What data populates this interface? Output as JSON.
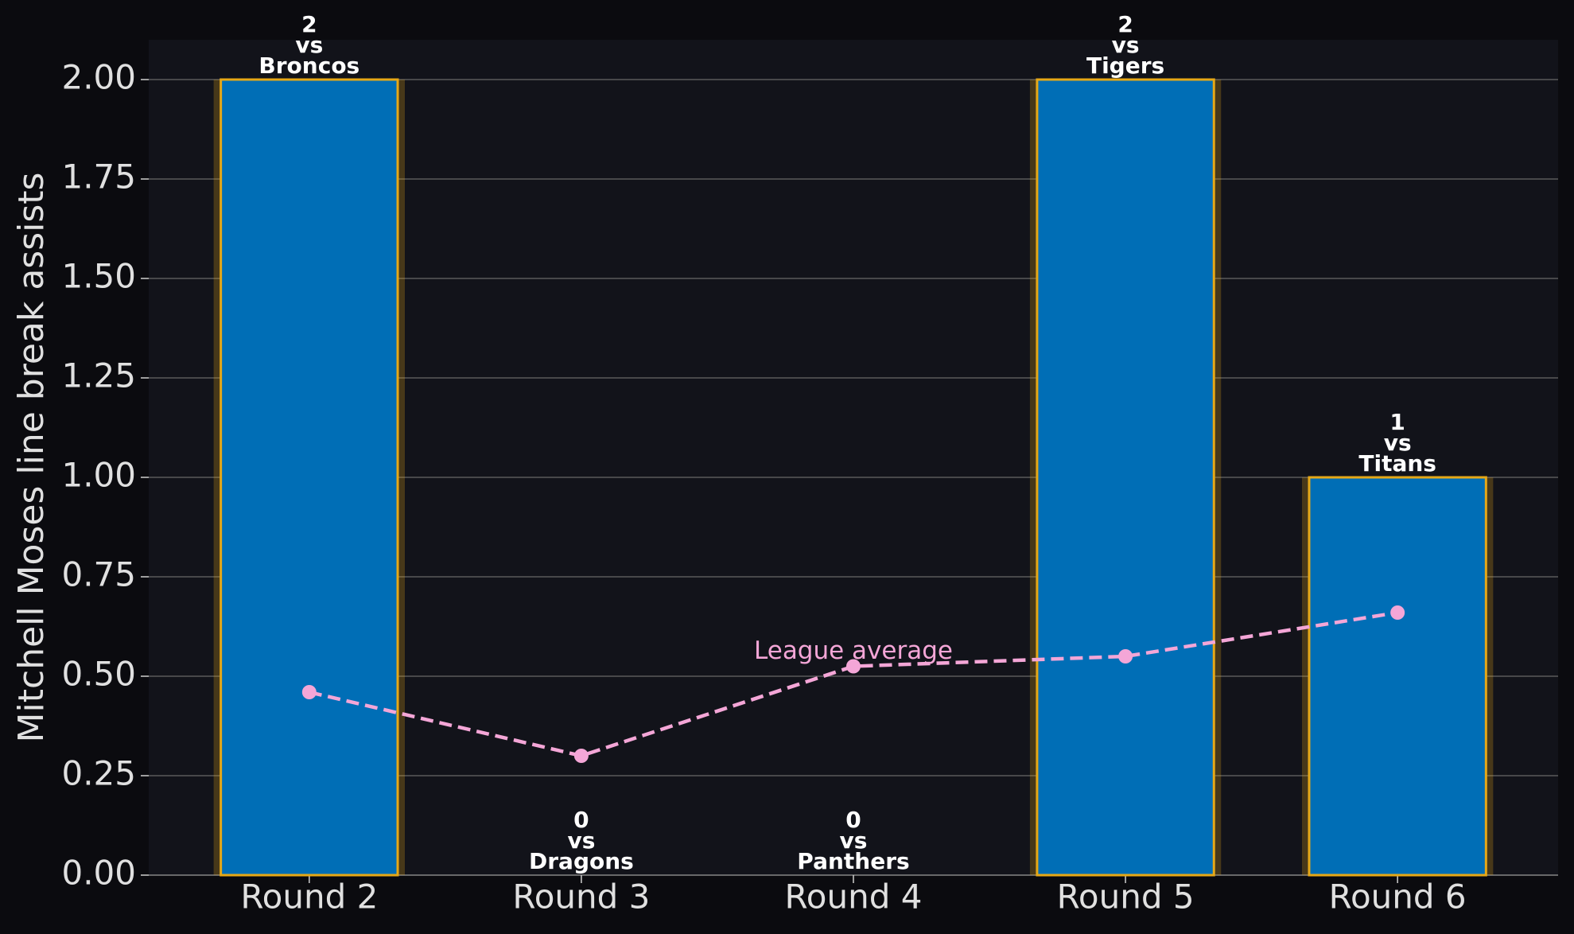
{
  "chart_data": {
    "type": "bar",
    "y_label": "Mitchell Moses line break assists",
    "categories": [
      "Round 2",
      "Round 3",
      "Round 4",
      "Round 5",
      "Round 6"
    ],
    "values": [
      2,
      0,
      0,
      2,
      1
    ],
    "connector": "vs",
    "opponents": [
      "Broncos",
      "Dragons",
      "Panthers",
      "Tigers",
      "Titans"
    ],
    "color": "#006eb6",
    "edge_color": "#e6a817",
    "line": {
      "name": "League average",
      "color": "#f4a6d7",
      "values": [
        0.46,
        0.3,
        0.525,
        0.55,
        0.66
      ]
    },
    "ylim": [
      0,
      2.1
    ],
    "yticks": [
      {
        "value": 0,
        "label": "0.00"
      },
      {
        "value": 0.25,
        "label": "0.25"
      },
      {
        "value": 0.5,
        "label": "0.50"
      },
      {
        "value": 0.75,
        "label": "0.75"
      },
      {
        "value": 1,
        "label": "1.00"
      },
      {
        "value": 1.25,
        "label": "1.25"
      },
      {
        "value": 1.5,
        "label": "1.50"
      },
      {
        "value": 1.75,
        "label": "1.75"
      },
      {
        "value": 2,
        "label": "2.00"
      }
    ],
    "grid": true
  }
}
